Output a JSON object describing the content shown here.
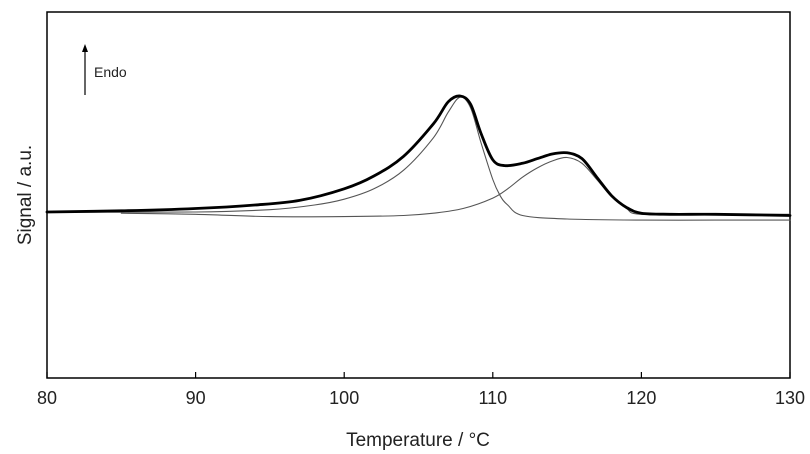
{
  "chart_data": {
    "type": "line",
    "title": "",
    "xlabel": "Temperature / °C",
    "ylabel": "Signal / a.u.",
    "xlim": [
      80,
      130
    ],
    "ylim": [
      -1.0,
      1.0
    ],
    "xticks": [
      "80",
      "90",
      "100",
      "110",
      "120",
      "130"
    ],
    "yticks": [],
    "grid": false,
    "legend": "none",
    "annotation": "Endo",
    "series": [
      {
        "style": "thick",
        "color": "#000000",
        "x": [
          80,
          85,
          90,
          94,
          97,
          100,
          102,
          104,
          106,
          107,
          107.8,
          108.5,
          109.2,
          110,
          110.8,
          112,
          113,
          114,
          115,
          116,
          117,
          118,
          119,
          120,
          122,
          125,
          130
        ],
        "y": [
          0.0,
          0.01,
          0.03,
          0.06,
          0.1,
          0.2,
          0.31,
          0.48,
          0.76,
          0.95,
          1.0,
          0.93,
          0.68,
          0.45,
          0.4,
          0.42,
          0.46,
          0.5,
          0.51,
          0.46,
          0.3,
          0.14,
          0.04,
          -0.01,
          -0.02,
          -0.02,
          -0.03
        ]
      },
      {
        "style": "thin",
        "color": "#555555",
        "x": [
          80,
          90,
          95,
          98,
          100,
          102,
          104,
          106,
          107,
          107.8,
          108.5,
          109.2,
          110,
          110.5,
          111,
          112,
          115,
          120,
          125,
          130
        ],
        "y": [
          0.0,
          0.0,
          0.02,
          0.06,
          0.11,
          0.2,
          0.36,
          0.64,
          0.86,
          0.99,
          0.9,
          0.6,
          0.28,
          0.14,
          0.06,
          -0.03,
          -0.06,
          -0.07,
          -0.07,
          -0.07
        ]
      },
      {
        "style": "thin",
        "color": "#555555",
        "x": [
          85,
          90,
          95,
          100,
          104,
          106,
          108,
          110,
          111,
          112,
          113,
          114,
          115,
          116,
          117,
          118,
          119,
          120,
          125,
          130
        ],
        "y": [
          -0.01,
          -0.02,
          -0.04,
          -0.04,
          -0.03,
          -0.01,
          0.03,
          0.12,
          0.2,
          0.3,
          0.38,
          0.44,
          0.47,
          0.42,
          0.28,
          0.13,
          0.03,
          -0.02,
          -0.02,
          -0.02
        ]
      }
    ]
  }
}
